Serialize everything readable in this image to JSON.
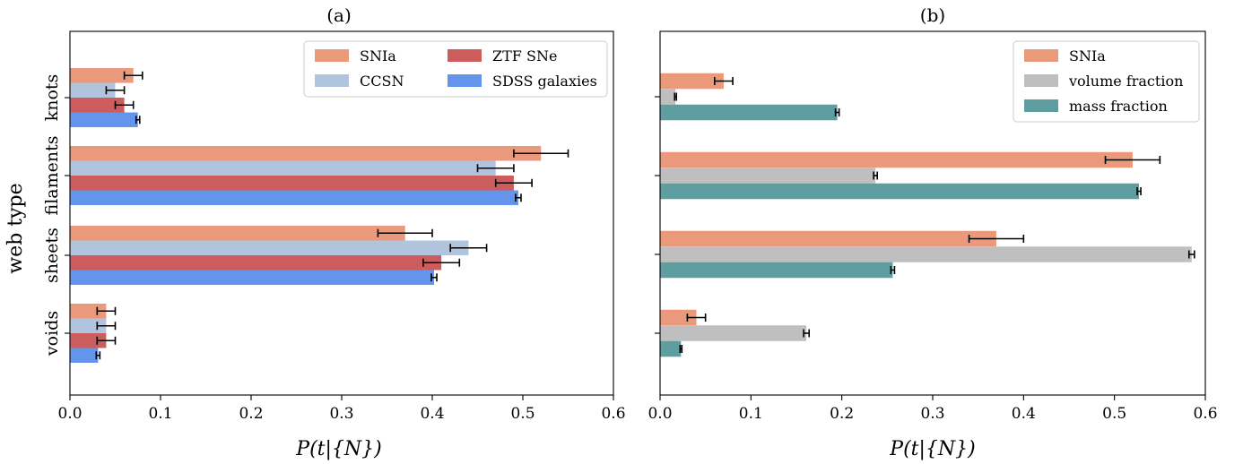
{
  "colors": {
    "SNIa": "#ea9a7b",
    "CCSN": "#b0c4de",
    "ZTF SNe": "#cd5c5c",
    "SDSS galaxies": "#6495ed",
    "volume fraction": "#bfbfbf",
    "mass fraction": "#5f9ea0"
  },
  "chart_data": [
    {
      "type": "bar",
      "orientation": "horizontal",
      "title": "(a)",
      "xlabel": "P(t|{N})",
      "ylabel": "web type",
      "categories": [
        "voids",
        "sheets",
        "filaments",
        "knots"
      ],
      "xlim": [
        0,
        0.6
      ],
      "xticks": [
        "0.0",
        "0.1",
        "0.2",
        "0.3",
        "0.4",
        "0.5",
        "0.6"
      ],
      "legend_position": "top-right",
      "legend_columns": 2,
      "series": [
        {
          "name": "SNIa",
          "values": [
            0.04,
            0.37,
            0.52,
            0.07
          ],
          "errors": [
            0.01,
            0.03,
            0.03,
            0.01
          ]
        },
        {
          "name": "CCSN",
          "values": [
            0.04,
            0.44,
            0.47,
            0.05
          ],
          "errors": [
            0.01,
            0.02,
            0.02,
            0.01
          ]
        },
        {
          "name": "ZTF SNe",
          "values": [
            0.04,
            0.41,
            0.49,
            0.06
          ],
          "errors": [
            0.01,
            0.02,
            0.02,
            0.01
          ]
        },
        {
          "name": "SDSS galaxies",
          "values": [
            0.031,
            0.402,
            0.495,
            0.075
          ],
          "errors": [
            0.002,
            0.003,
            0.003,
            0.002
          ]
        }
      ]
    },
    {
      "type": "bar",
      "orientation": "horizontal",
      "title": "(b)",
      "xlabel": "P(t|{N})",
      "ylabel": "",
      "categories": [
        "voids",
        "sheets",
        "filaments",
        "knots"
      ],
      "xlim": [
        0,
        0.6
      ],
      "xticks": [
        "0.0",
        "0.1",
        "0.2",
        "0.3",
        "0.4",
        "0.5",
        "0.6"
      ],
      "legend_position": "top-right",
      "legend_columns": 1,
      "series": [
        {
          "name": "SNIa",
          "values": [
            0.04,
            0.37,
            0.52,
            0.07
          ],
          "errors": [
            0.01,
            0.03,
            0.03,
            0.01
          ]
        },
        {
          "name": "volume fraction",
          "values": [
            0.161,
            0.585,
            0.237,
            0.017
          ],
          "errors": [
            0.003,
            0.003,
            0.002,
            0.001
          ]
        },
        {
          "name": "mass fraction",
          "values": [
            0.023,
            0.256,
            0.527,
            0.195
          ],
          "errors": [
            0.001,
            0.002,
            0.002,
            0.002
          ]
        }
      ]
    }
  ]
}
